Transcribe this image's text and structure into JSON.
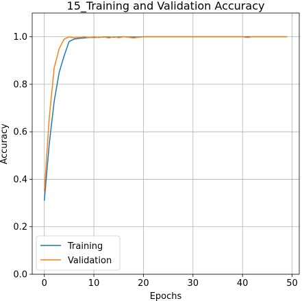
{
  "chart_data": {
    "type": "line",
    "title": "15_Training and Validation Accuracy",
    "xlabel": "Epochs",
    "ylabel": "Accuracy",
    "xlim": [
      -2.45,
      51.45
    ],
    "ylim": [
      0.0,
      1.1
    ],
    "xticks": [
      0,
      10,
      20,
      30,
      40,
      50
    ],
    "yticks": [
      0.0,
      0.2,
      0.4,
      0.6,
      0.8,
      1.0
    ],
    "grid": true,
    "legend_position": "lower-left",
    "series": [
      {
        "name": "Training",
        "color": "#1f77b4",
        "x": [
          0,
          1,
          2,
          3,
          4,
          5,
          6,
          7,
          8,
          9,
          10,
          11,
          12,
          13,
          14,
          15,
          16,
          17,
          18,
          19,
          20,
          21,
          22,
          23,
          24,
          25,
          26,
          27,
          28,
          29,
          30,
          31,
          32,
          33,
          34,
          35,
          36,
          37,
          38,
          39,
          40,
          41,
          42,
          43,
          44,
          45,
          46,
          47,
          48,
          49
        ],
        "values": [
          0.31,
          0.55,
          0.73,
          0.85,
          0.92,
          0.98,
          0.99,
          0.993,
          0.995,
          0.997,
          0.997,
          0.998,
          0.999,
          0.999,
          0.998,
          0.999,
          1.0,
          0.999,
          0.999,
          0.999,
          1.0,
          1.0,
          1.0,
          1.0,
          1.0,
          1.0,
          1.0,
          1.0,
          1.0,
          1.0,
          1.0,
          1.0,
          1.0,
          1.0,
          1.0,
          1.0,
          1.0,
          1.0,
          1.0,
          1.0,
          1.0,
          1.0,
          1.0,
          1.0,
          1.0,
          1.0,
          1.0,
          1.0,
          1.0,
          1.0
        ]
      },
      {
        "name": "Validation",
        "color": "#ff7f0e",
        "x": [
          0,
          1,
          2,
          3,
          4,
          5,
          6,
          7,
          8,
          9,
          10,
          11,
          12,
          13,
          14,
          15,
          16,
          17,
          18,
          19,
          20,
          21,
          22,
          23,
          24,
          25,
          26,
          27,
          28,
          29,
          30,
          31,
          32,
          33,
          34,
          35,
          36,
          37,
          38,
          39,
          40,
          41,
          42,
          43,
          44,
          45,
          46,
          47,
          48,
          49
        ],
        "values": [
          0.35,
          0.66,
          0.87,
          0.95,
          0.99,
          1.0,
          0.995,
          0.997,
          1.0,
          0.996,
          1.0,
          0.997,
          1.0,
          0.995,
          1.0,
          0.996,
          1.0,
          0.998,
          0.995,
          0.998,
          1.0,
          1.0,
          1.0,
          1.0,
          1.0,
          1.0,
          1.0,
          1.0,
          1.0,
          1.0,
          1.0,
          1.0,
          1.0,
          1.0,
          1.0,
          1.0,
          1.0,
          1.0,
          1.0,
          1.0,
          1.0,
          0.997,
          1.0,
          1.0,
          1.0,
          1.0,
          1.0,
          1.0,
          1.0,
          1.0
        ]
      }
    ]
  }
}
